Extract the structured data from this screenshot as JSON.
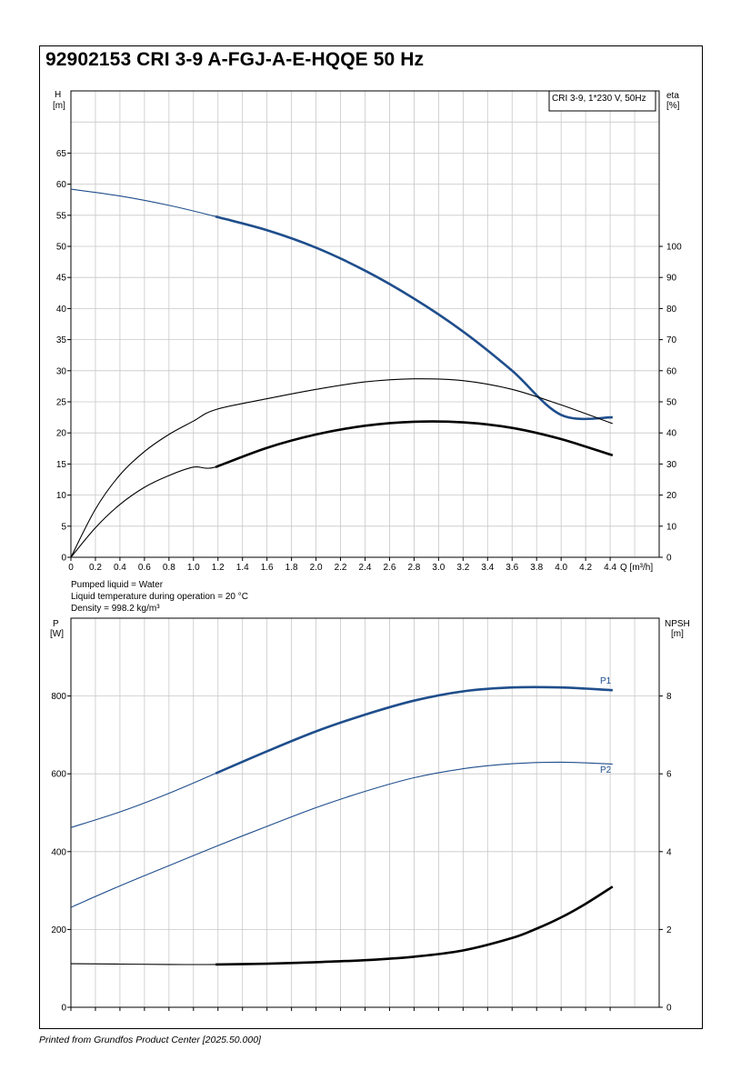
{
  "title": "92902153 CRI 3-9 A-FGJ-A-E-HQQE 50 Hz",
  "footer": "Printed from Grundfos Product Center [2025.50.000]",
  "info": {
    "pumped_liquid": "Pumped liquid = Water",
    "liquid_temp": "Liquid temperature during operation = 20 °C",
    "density": "Density = 998.2 kg/m³"
  },
  "colors": {
    "blue": "#1f4e8c",
    "black": "#000000",
    "grid": "#c8c8c8"
  },
  "chart_data": [
    {
      "type": "line",
      "legend_box": "CRI 3-9, 1*230 V, 50Hz",
      "xlabel": "Q [m³/h]",
      "ylabel_left": [
        "H",
        "[m]"
      ],
      "ylabel_right": [
        "eta",
        "[%]"
      ],
      "xlim": [
        0,
        4.8
      ],
      "xticks": [
        0,
        0.2,
        0.4,
        0.6,
        0.8,
        1.0,
        1.2,
        1.4,
        1.6,
        1.8,
        2.0,
        2.2,
        2.4,
        2.6,
        2.8,
        3.0,
        3.2,
        3.4,
        3.6,
        3.8,
        4.0,
        4.2,
        4.4
      ],
      "xtick_labels": [
        "0",
        "0.2",
        "0.4",
        "0.6",
        "0.8",
        "1.0",
        "1.2",
        "1.4",
        "1.6",
        "1.8",
        "2.0",
        "2.2",
        "2.4",
        "2.6",
        "2.8",
        "3.0",
        "3.2",
        "3.4",
        "3.6",
        "3.8",
        "4.0",
        "4.2",
        "4.4"
      ],
      "ylim_left": [
        0,
        75
      ],
      "yticks_left": [
        0,
        5,
        10,
        15,
        20,
        25,
        30,
        35,
        40,
        45,
        50,
        55,
        60,
        65
      ],
      "ylim_right": [
        0,
        150
      ],
      "yticks_right": [
        0,
        10,
        20,
        30,
        40,
        50,
        60,
        70,
        80,
        90,
        100
      ],
      "grid": true,
      "series": [
        {
          "axis": "left",
          "color": "#1f4e8c",
          "x": [
            0,
            0.4,
            0.8,
            1.18,
            1.6,
            2.0,
            2.4,
            2.8,
            3.2,
            3.6,
            4.0,
            4.42
          ],
          "y": [
            59.2,
            58.1,
            56.6,
            54.8,
            52.6,
            49.8,
            46.1,
            41.6,
            36.3,
            30.0,
            22.9,
            22.5
          ],
          "bold_from": 1.18
        },
        {
          "axis": "right",
          "color": "#000000",
          "x": [
            0,
            0.2,
            0.4,
            0.6,
            0.8,
            1.0,
            1.18,
            1.6,
            2.0,
            2.4,
            2.8,
            3.2,
            3.6,
            4.0,
            4.42
          ],
          "y": [
            0,
            15.5,
            26.5,
            34.0,
            39.5,
            43.8,
            47.5,
            51.0,
            54.0,
            56.4,
            57.4,
            56.8,
            54.0,
            49.0,
            43.0
          ],
          "bold_from": 99
        },
        {
          "axis": "right",
          "color": "#000000",
          "x": [
            0,
            0.2,
            0.4,
            0.6,
            0.8,
            1.0,
            1.18,
            1.6,
            2.0,
            2.4,
            2.8,
            3.2,
            3.6,
            4.0,
            4.42
          ],
          "y": [
            0,
            9.5,
            17.0,
            22.5,
            26.3,
            29.0,
            29.0,
            35.2,
            39.5,
            42.3,
            43.6,
            43.4,
            41.6,
            38.0,
            32.8
          ],
          "bold_from": 1.18
        }
      ]
    },
    {
      "type": "line",
      "ylabel_left": [
        "P",
        "[W]"
      ],
      "ylabel_right": [
        "NPSH",
        "[m]"
      ],
      "xlim": [
        0,
        4.8
      ],
      "xticks": [
        0,
        0.2,
        0.4,
        0.6,
        0.8,
        1.0,
        1.2,
        1.4,
        1.6,
        1.8,
        2.0,
        2.2,
        2.4,
        2.6,
        2.8,
        3.0,
        3.2,
        3.4,
        3.6,
        3.8,
        4.0,
        4.2,
        4.4
      ],
      "ylim_left": [
        0,
        1000
      ],
      "yticks_left": [
        0,
        200,
        400,
        600,
        800
      ],
      "ylim_right": [
        0,
        10
      ],
      "yticks_right": [
        0,
        2,
        4,
        6,
        8
      ],
      "grid": true,
      "series": [
        {
          "name": "P1",
          "axis": "left",
          "color": "#1f4e8c",
          "x": [
            0,
            0.4,
            0.8,
            1.18,
            1.6,
            2.0,
            2.4,
            2.8,
            3.2,
            3.6,
            4.0,
            4.42
          ],
          "y": [
            462,
            502,
            550,
            601,
            658,
            709,
            752,
            788,
            812,
            822,
            822,
            815
          ],
          "bold_from": 1.18
        },
        {
          "name": "P2",
          "axis": "left",
          "color": "#1f4e8c",
          "x": [
            0,
            0.4,
            0.8,
            1.18,
            1.6,
            2.0,
            2.4,
            2.8,
            3.2,
            3.6,
            4.0,
            4.42
          ],
          "y": [
            257,
            312,
            364,
            413,
            465,
            513,
            555,
            590,
            613,
            626,
            630,
            625
          ],
          "bold_from": 99
        },
        {
          "axis": "right",
          "color": "#000000",
          "x": [
            0,
            0.4,
            0.8,
            1.18,
            1.6,
            2.0,
            2.4,
            2.8,
            3.2,
            3.6,
            3.8,
            4.0,
            4.2,
            4.42
          ],
          "y": [
            1.12,
            1.11,
            1.1,
            1.1,
            1.12,
            1.16,
            1.21,
            1.3,
            1.46,
            1.78,
            2.02,
            2.31,
            2.66,
            3.1
          ],
          "bold_from": 1.18
        }
      ]
    }
  ]
}
